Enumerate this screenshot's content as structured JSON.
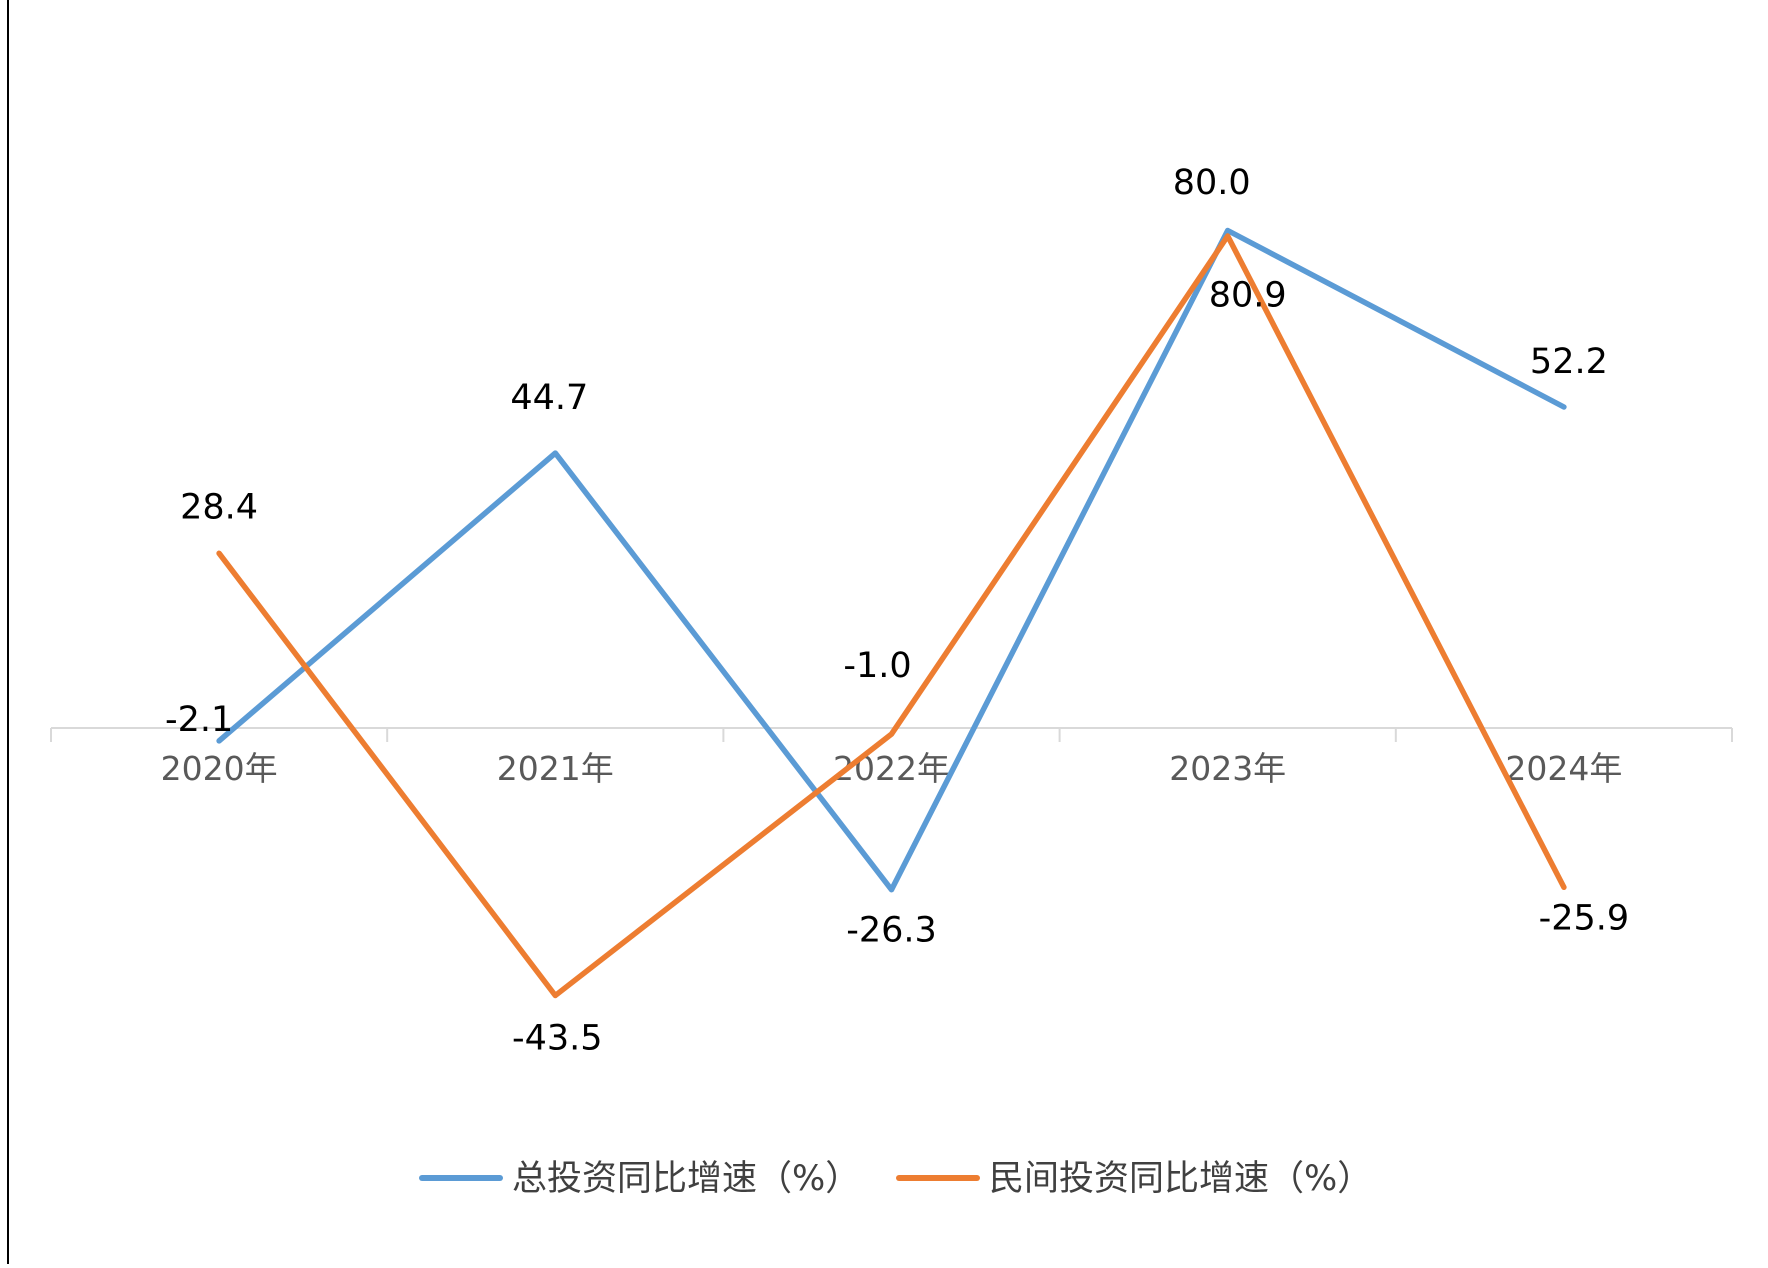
{
  "chart_data": {
    "type": "line",
    "title": "",
    "xlabel": "",
    "ylabel": "",
    "categories": [
      "2020年",
      "2021年",
      "2022年",
      "2023年",
      "2024年"
    ],
    "ylim": [
      -80,
      100
    ],
    "grid": false,
    "legend_position": "bottom",
    "series": [
      {
        "name": "总投资同比增速（%）",
        "color": "#5B9BD5",
        "values": [
          -2.1,
          44.7,
          -26.3,
          80.9,
          52.2
        ],
        "labels": [
          "-2.1",
          "44.7",
          "-26.3",
          "80.9",
          "52.2"
        ]
      },
      {
        "name": "民间投资同比增速（%）",
        "color": "#ED7D31",
        "values": [
          28.4,
          -43.5,
          -1.0,
          80.0,
          -25.9
        ],
        "labels": [
          "28.4",
          "-43.5",
          "-1.0",
          "80.0",
          "-25.9"
        ]
      }
    ]
  }
}
